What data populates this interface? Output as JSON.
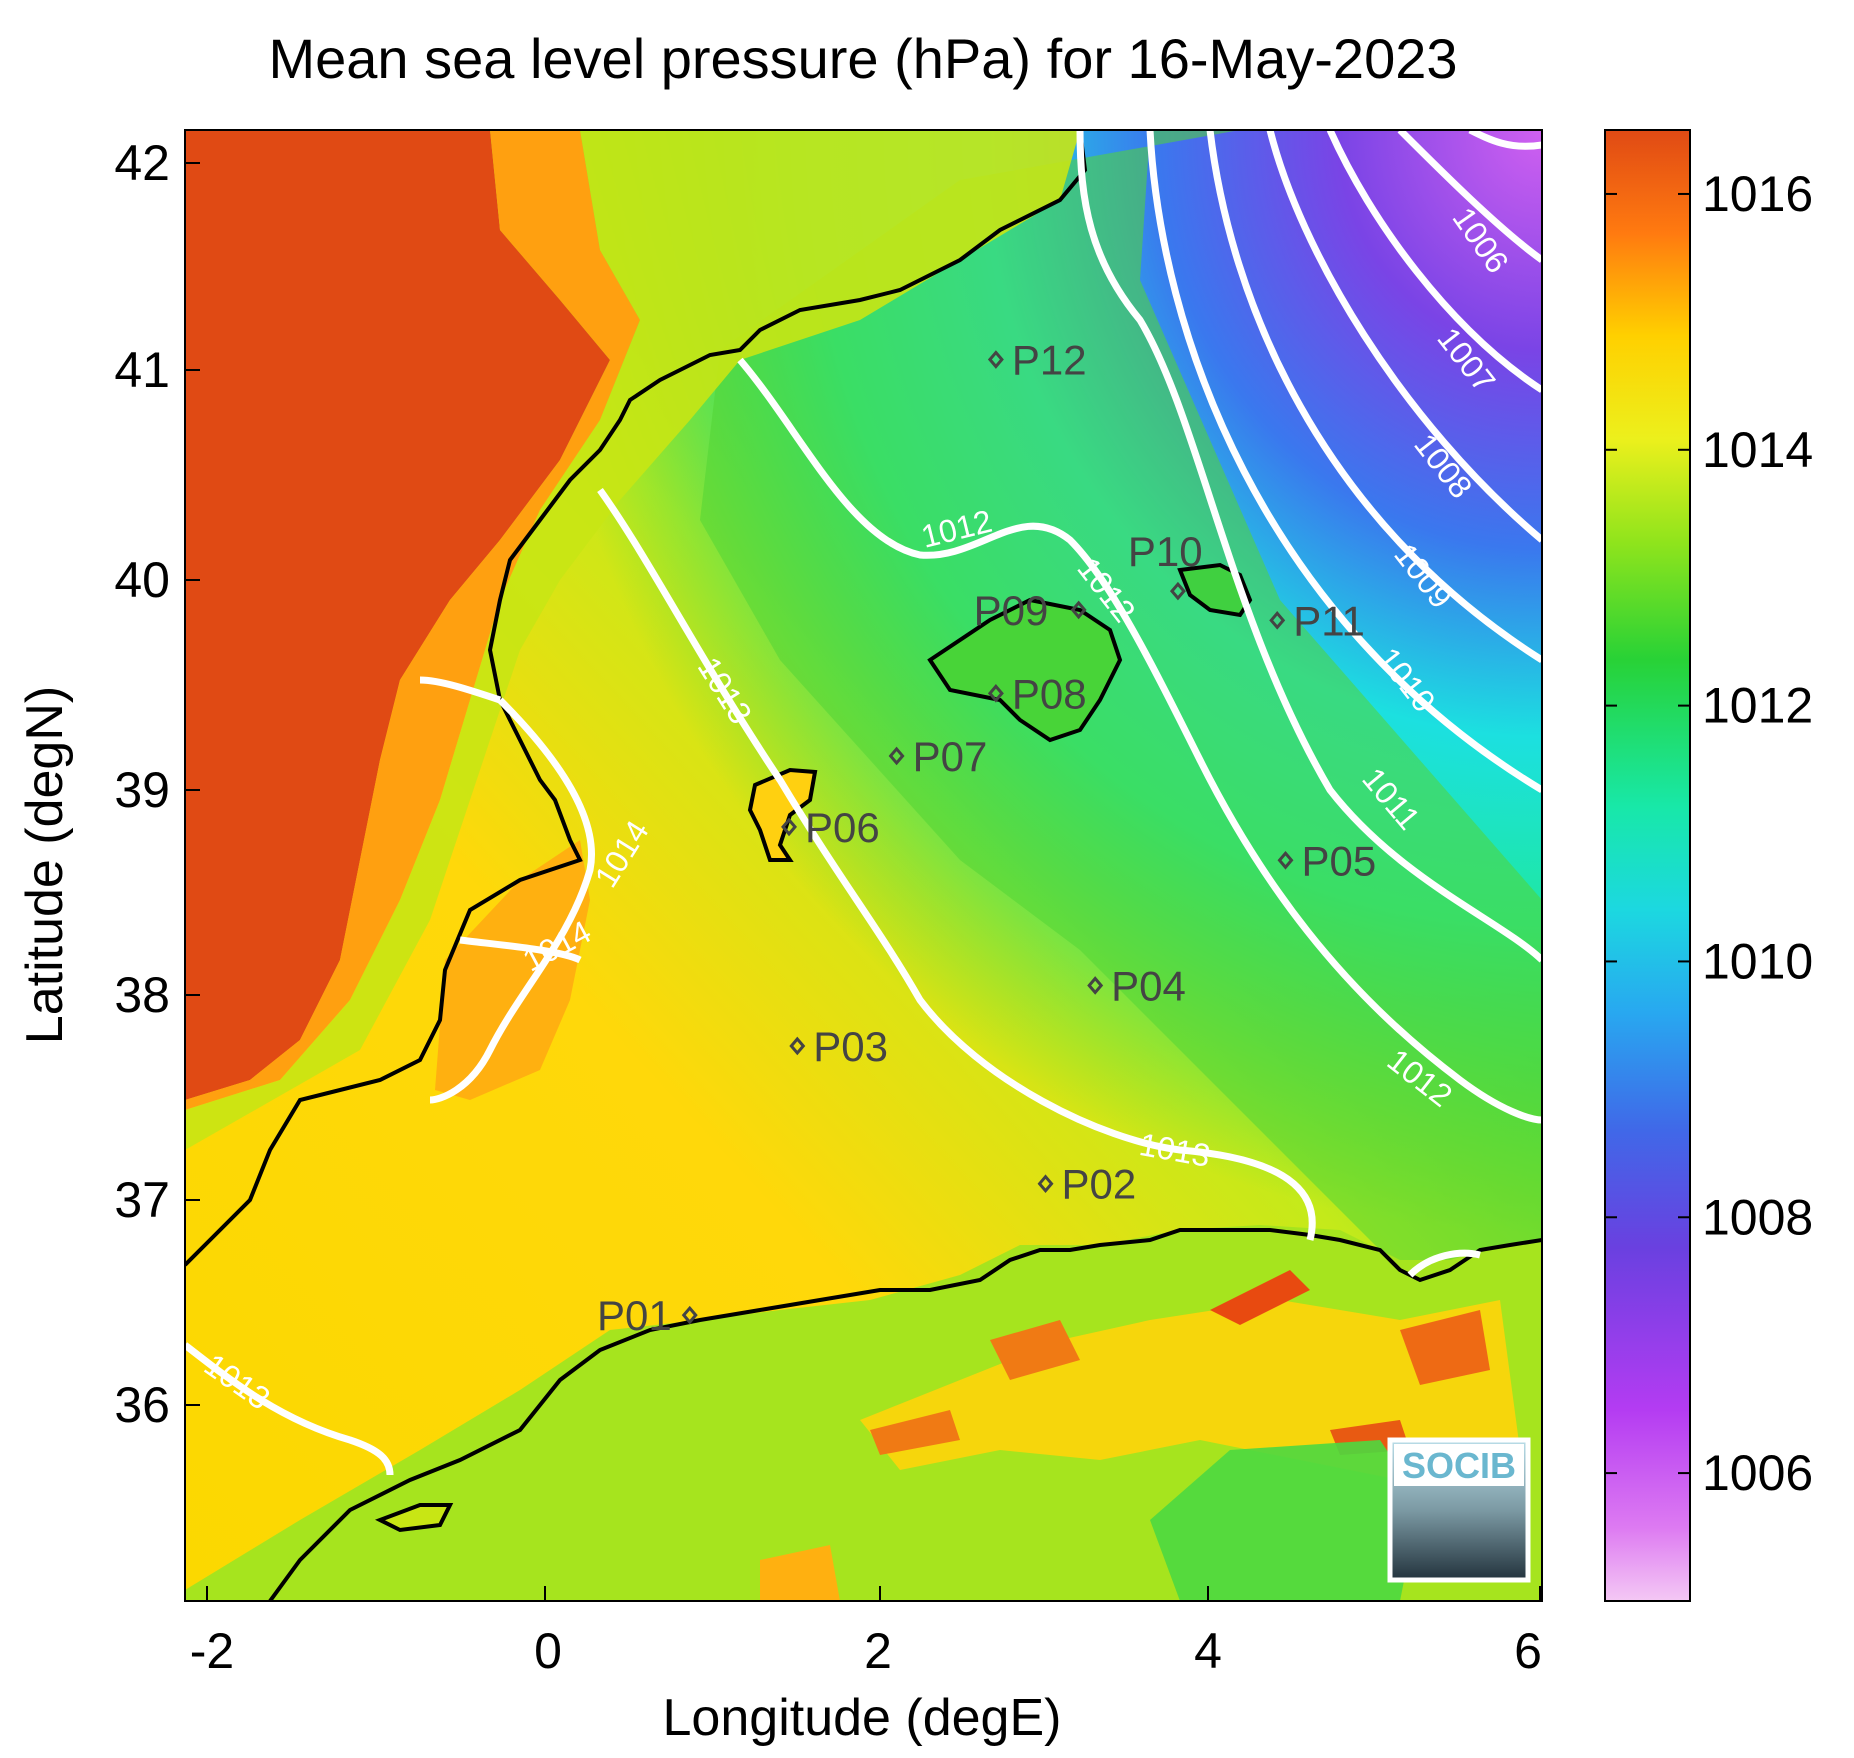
{
  "title": "Mean sea level pressure (hPa) for 16-May-2023",
  "xlabel": "Longitude (degE)",
  "ylabel": "Latitude (degN)",
  "x_ticks": [
    "-2",
    "0",
    "2",
    "4",
    "6"
  ],
  "y_ticks": [
    "42",
    "41",
    "40",
    "39",
    "38",
    "37",
    "36"
  ],
  "colorbar": {
    "range": [
      1005.0,
      1016.5
    ],
    "ticks": [
      "1016",
      "1014",
      "1012",
      "1010",
      "1008",
      "1006"
    ]
  },
  "logo": {
    "text": "SOCIB"
  },
  "points": [
    {
      "label": "P01",
      "lon": 0.85,
      "lat": 36.52
    },
    {
      "label": "P02",
      "lon": 3.0,
      "lat": 37.15
    },
    {
      "label": "P03",
      "lon": 1.5,
      "lat": 37.81
    },
    {
      "label": "P04",
      "lon": 3.3,
      "lat": 38.1
    },
    {
      "label": "P05",
      "lon": 4.45,
      "lat": 38.7
    },
    {
      "label": "P06",
      "lon": 1.45,
      "lat": 38.86
    },
    {
      "label": "P07",
      "lon": 2.1,
      "lat": 39.2
    },
    {
      "label": "P08",
      "lon": 2.7,
      "lat": 39.5
    },
    {
      "label": "P09",
      "lon": 3.2,
      "lat": 39.9
    },
    {
      "label": "P10",
      "lon": 3.8,
      "lat": 39.99
    },
    {
      "label": "P11",
      "lon": 4.4,
      "lat": 39.85
    },
    {
      "label": "P12",
      "lon": 2.7,
      "lat": 41.1
    }
  ],
  "contour_labels": [
    "1006",
    "1007",
    "1008",
    "1009",
    "1010",
    "1011",
    "1012",
    "1012",
    "1012",
    "1013",
    "1013",
    "1013",
    "1014",
    "1014"
  ],
  "colors": {
    "high": "#e04a14",
    "mid_high": "#ffd200",
    "mid": "#28d246",
    "low": "#4040e0",
    "lowest": "#f0b4f0",
    "contour": "#ffffff",
    "coast": "#000000",
    "point": "#444444"
  },
  "chart_data": {
    "type": "heatmap",
    "title": "Mean sea level pressure (hPa) for 16-May-2023",
    "xlabel": "Longitude (degE)",
    "ylabel": "Latitude (degN)",
    "xlim": [
      -2.2,
      6.0
    ],
    "ylim": [
      35.15,
      42.2
    ],
    "value_range": [
      1005.0,
      1016.5
    ],
    "contour_levels": [
      1006,
      1007,
      1008,
      1009,
      1010,
      1011,
      1012,
      1013,
      1014
    ]
  }
}
